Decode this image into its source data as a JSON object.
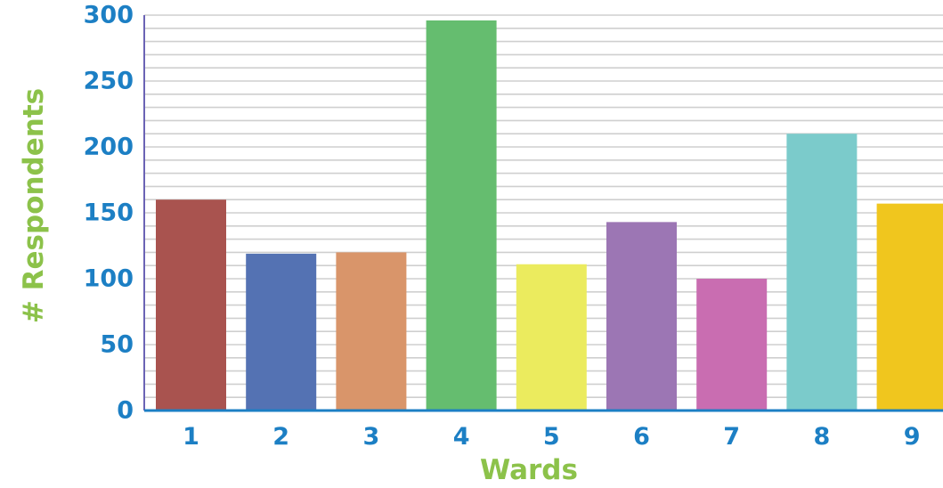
{
  "chart_data": {
    "type": "bar",
    "categories": [
      "1",
      "2",
      "3",
      "4",
      "5",
      "6",
      "7",
      "8",
      "9"
    ],
    "values": [
      160,
      119,
      120,
      296,
      111,
      143,
      100,
      210,
      157
    ],
    "colors": [
      "#a9534f",
      "#5472b3",
      "#d9956a",
      "#65bd6f",
      "#ebeb5e",
      "#9c76b4",
      "#c96db1",
      "#7bcbcb",
      "#f0c61e"
    ],
    "title": "",
    "xlabel": "Wards",
    "ylabel": "# Respondents",
    "ylim": [
      0,
      300
    ],
    "yticks": [
      "0",
      "50",
      "100",
      "150",
      "200",
      "250",
      "300"
    ],
    "grid": true,
    "legend": "none"
  },
  "style": {
    "tick_color": "#1c7fc4",
    "axis_title_color": "#8cc24a",
    "axis_line_color": "#1c7fc4",
    "grid_color": "#cfcfcf"
  }
}
